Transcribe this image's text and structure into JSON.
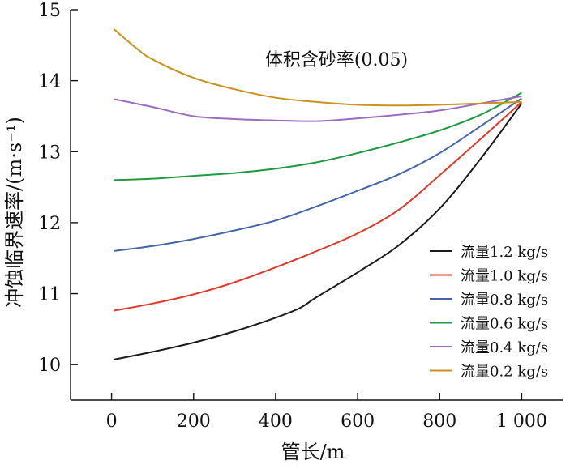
{
  "chart_data": {
    "type": "line",
    "annotation": "体积含砂率(0.05)",
    "xlabel": "管长/m",
    "ylabel": "冲蚀临界速率/(m·s⁻¹)",
    "xlim": [
      -100,
      1100
    ],
    "ylim": [
      9.5,
      15
    ],
    "x_ticks": [
      0,
      200,
      400,
      600,
      800,
      1000
    ],
    "x_tick_labels": [
      "0",
      "200",
      "400",
      "600",
      "800",
      "1 000"
    ],
    "y_ticks": [
      10,
      11,
      12,
      13,
      14,
      15
    ],
    "y_tick_labels": [
      "10",
      "11",
      "12",
      "13",
      "14",
      "15"
    ],
    "legend_position": "bottom-right",
    "grid": false,
    "series": [
      {
        "name": "流量1.2 kg/s",
        "color": "#1a1a1a",
        "points": [
          [
            5,
            10.07
          ],
          [
            100,
            10.18
          ],
          [
            200,
            10.31
          ],
          [
            300,
            10.47
          ],
          [
            400,
            10.66
          ],
          [
            460,
            10.8
          ],
          [
            500,
            10.95
          ],
          [
            600,
            11.3
          ],
          [
            700,
            11.68
          ],
          [
            800,
            12.2
          ],
          [
            900,
            12.9
          ],
          [
            1000,
            13.68
          ]
        ]
      },
      {
        "name": "流量1.0 kg/s",
        "color": "#e0392b",
        "points": [
          [
            5,
            10.76
          ],
          [
            100,
            10.86
          ],
          [
            200,
            10.99
          ],
          [
            300,
            11.16
          ],
          [
            400,
            11.37
          ],
          [
            500,
            11.6
          ],
          [
            600,
            11.85
          ],
          [
            700,
            12.18
          ],
          [
            800,
            12.67
          ],
          [
            900,
            13.18
          ],
          [
            1000,
            13.7
          ]
        ]
      },
      {
        "name": "流量0.8 kg/s",
        "color": "#4466a8",
        "points": [
          [
            5,
            11.6
          ],
          [
            100,
            11.67
          ],
          [
            200,
            11.77
          ],
          [
            300,
            11.89
          ],
          [
            400,
            12.03
          ],
          [
            500,
            12.23
          ],
          [
            600,
            12.45
          ],
          [
            700,
            12.68
          ],
          [
            800,
            12.98
          ],
          [
            900,
            13.36
          ],
          [
            1000,
            13.75
          ]
        ]
      },
      {
        "name": "流量0.6 kg/s",
        "color": "#1f9a3f",
        "points": [
          [
            5,
            12.6
          ],
          [
            100,
            12.62
          ],
          [
            200,
            12.66
          ],
          [
            300,
            12.7
          ],
          [
            400,
            12.76
          ],
          [
            500,
            12.85
          ],
          [
            600,
            12.98
          ],
          [
            700,
            13.13
          ],
          [
            800,
            13.3
          ],
          [
            900,
            13.52
          ],
          [
            1000,
            13.83
          ]
        ]
      },
      {
        "name": "流量0.4 kg/s",
        "color": "#9b6bbf",
        "points": [
          [
            5,
            13.74
          ],
          [
            100,
            13.63
          ],
          [
            200,
            13.5
          ],
          [
            300,
            13.46
          ],
          [
            400,
            13.44
          ],
          [
            500,
            13.43
          ],
          [
            600,
            13.47
          ],
          [
            700,
            13.52
          ],
          [
            800,
            13.58
          ],
          [
            900,
            13.68
          ],
          [
            1000,
            13.78
          ]
        ]
      },
      {
        "name": "流量0.2 kg/s",
        "color": "#c9921e",
        "points": [
          [
            5,
            14.73
          ],
          [
            60,
            14.46
          ],
          [
            100,
            14.3
          ],
          [
            200,
            14.04
          ],
          [
            300,
            13.88
          ],
          [
            400,
            13.76
          ],
          [
            500,
            13.7
          ],
          [
            600,
            13.66
          ],
          [
            700,
            13.65
          ],
          [
            800,
            13.66
          ],
          [
            900,
            13.68
          ],
          [
            1000,
            13.7
          ]
        ]
      }
    ]
  }
}
